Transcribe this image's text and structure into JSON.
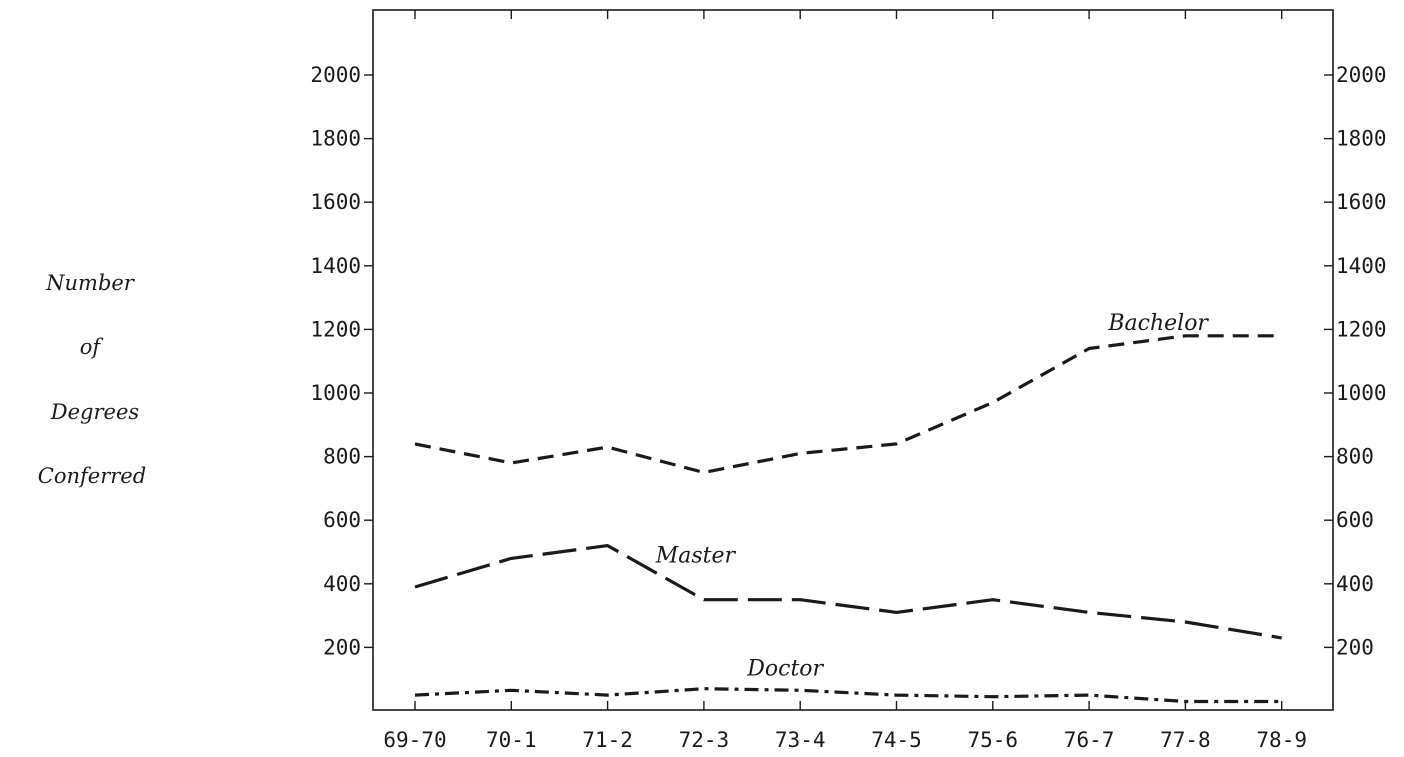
{
  "chart_data": {
    "type": "line",
    "xlabel": "",
    "ylabel": [
      "Number",
      "of",
      "Degrees",
      "Conferred"
    ],
    "categories": [
      "69-70",
      "70-1",
      "71-2",
      "72-3",
      "73-4",
      "74-5",
      "75-6",
      "76-7",
      "77-8",
      "78-9"
    ],
    "ylim": [
      0,
      2200
    ],
    "yticks": [
      200,
      400,
      600,
      800,
      1000,
      1200,
      1400,
      1600,
      1800,
      2000
    ],
    "ytick_labels": [
      "200",
      "400",
      "600",
      "800",
      "1000",
      "1200",
      "1400",
      "1600",
      "1800",
      "2000"
    ],
    "secondary_y_axis": true,
    "grid": false,
    "legend": "inline labels",
    "series": [
      {
        "name": "Bachelor",
        "line_style": "short-dash",
        "values": [
          840,
          780,
          830,
          750,
          810,
          840,
          970,
          1140,
          1180,
          1180
        ]
      },
      {
        "name": "Master",
        "line_style": "long-dash",
        "values": [
          390,
          480,
          520,
          350,
          350,
          310,
          350,
          310,
          280,
          230
        ]
      },
      {
        "name": "Doctor",
        "line_style": "dash-dot",
        "values": [
          50,
          65,
          50,
          70,
          65,
          50,
          45,
          50,
          30,
          30
        ]
      }
    ]
  }
}
